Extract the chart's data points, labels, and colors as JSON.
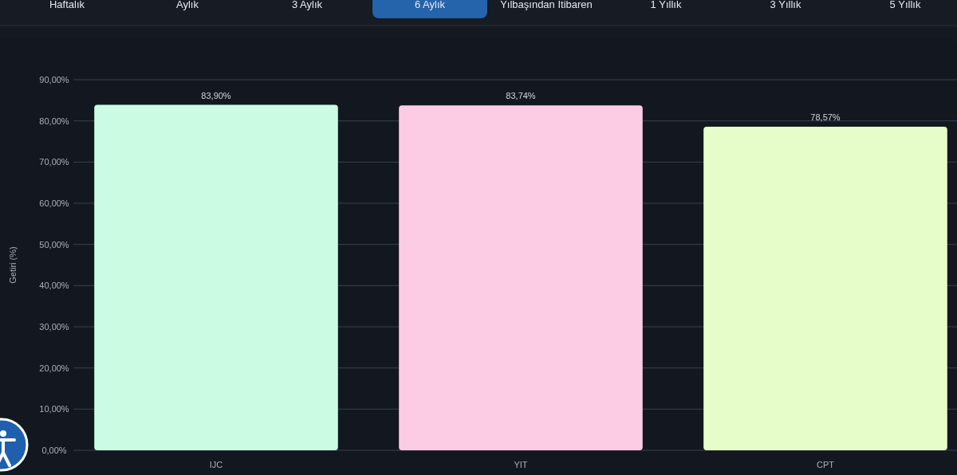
{
  "chart_data": {
    "type": "bar",
    "ylabel": "Getiri (%)",
    "categories": [
      "IJC",
      "YIT",
      "CPT"
    ],
    "values": [
      83.9,
      83.74,
      78.57
    ],
    "colors": [
      "#ccfbe4",
      "#fccbe4",
      "#e6fdca"
    ],
    "value_labels": [
      "83,90%",
      "83,74%",
      "78,57%"
    ],
    "ylim": [
      0,
      90
    ],
    "yticks": [
      {
        "value": 0,
        "label": "0,00%"
      },
      {
        "value": 10,
        "label": "10,00%"
      },
      {
        "value": 20,
        "label": "20,00%"
      },
      {
        "value": 30,
        "label": "30,00%"
      },
      {
        "value": 40,
        "label": "40,00%"
      },
      {
        "value": 50,
        "label": "50,00%"
      },
      {
        "value": 60,
        "label": "60,00%"
      },
      {
        "value": 70,
        "label": "70,00%"
      },
      {
        "value": 80,
        "label": "80,00%"
      },
      {
        "value": 90,
        "label": "90,00%"
      }
    ],
    "grid": "y",
    "annotations": [
      "Haftalık",
      "Aylık",
      "3 Aylık",
      "6 Aylık",
      "Yılbaşından Itibaren",
      "1 Yıllık",
      "3 Yıllık",
      "5 Yıllık"
    ]
  }
}
